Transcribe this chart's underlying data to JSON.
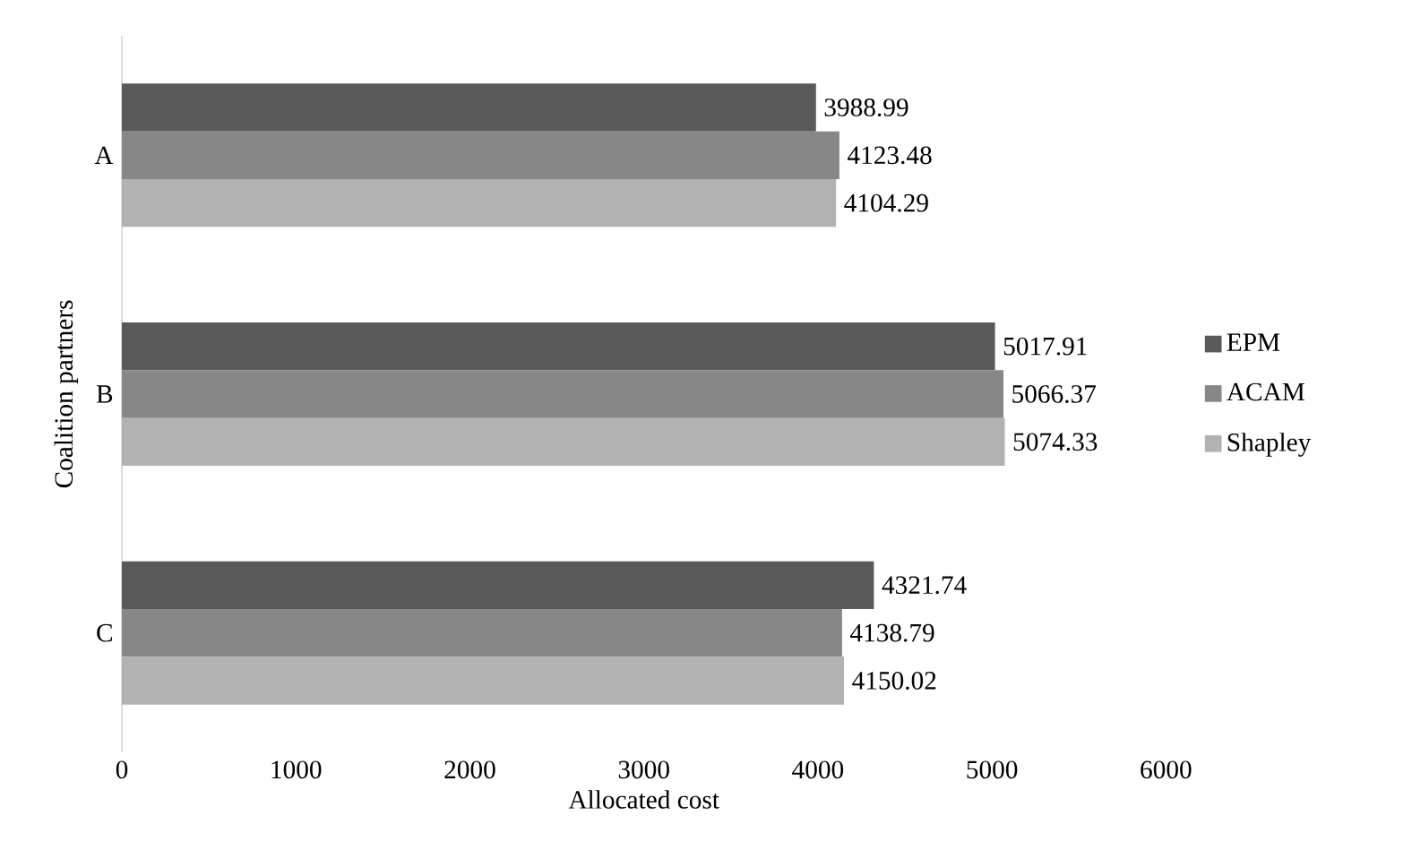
{
  "chart_data": {
    "type": "bar",
    "orientation": "horizontal",
    "xlabel": "Allocated cost",
    "ylabel": "Coalition partners",
    "categories": [
      "A",
      "B",
      "C"
    ],
    "series": [
      {
        "name": "EPM",
        "color": "#595959",
        "values": [
          3988.99,
          5017.91,
          4321.74
        ]
      },
      {
        "name": "ACAM",
        "color": "#878787",
        "values": [
          4123.48,
          5066.37,
          4138.79
        ]
      },
      {
        "name": "Shapley",
        "color": "#b2b2b2",
        "values": [
          4104.29,
          5074.33,
          4150.02
        ]
      }
    ],
    "xlim": [
      0,
      6000
    ],
    "xticks": [
      0,
      1000,
      2000,
      3000,
      4000,
      5000,
      6000
    ],
    "data_labels": true,
    "legend": "right",
    "grid": false
  }
}
